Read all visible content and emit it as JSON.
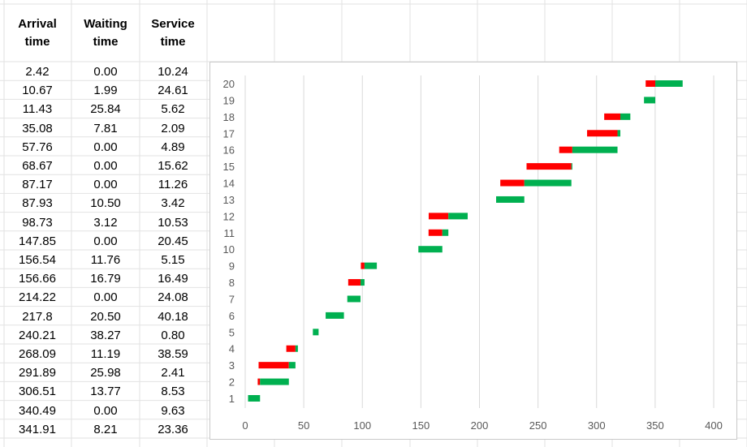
{
  "table": {
    "headers": [
      {
        "line1": "Arrival",
        "line2": "time"
      },
      {
        "line1": "Waiting",
        "line2": "time"
      },
      {
        "line1": "Service",
        "line2": "time"
      }
    ],
    "rows": [
      [
        "2.42",
        "0.00",
        "10.24"
      ],
      [
        "10.67",
        "1.99",
        "24.61"
      ],
      [
        "11.43",
        "25.84",
        "5.62"
      ],
      [
        "35.08",
        "7.81",
        "2.09"
      ],
      [
        "57.76",
        "0.00",
        "4.89"
      ],
      [
        "68.67",
        "0.00",
        "15.62"
      ],
      [
        "87.17",
        "0.00",
        "11.26"
      ],
      [
        "87.93",
        "10.50",
        "3.42"
      ],
      [
        "98.73",
        "3.12",
        "10.53"
      ],
      [
        "147.85",
        "0.00",
        "20.45"
      ],
      [
        "156.54",
        "11.76",
        "5.15"
      ],
      [
        "156.66",
        "16.79",
        "16.49"
      ],
      [
        "214.22",
        "0.00",
        "24.08"
      ],
      [
        "217.8",
        "20.50",
        "40.18"
      ],
      [
        "240.21",
        "38.27",
        "0.80"
      ],
      [
        "268.09",
        "11.19",
        "38.59"
      ],
      [
        "291.89",
        "25.98",
        "2.41"
      ],
      [
        "306.51",
        "13.77",
        "8.53"
      ],
      [
        "340.49",
        "0.00",
        "9.63"
      ],
      [
        "341.91",
        "8.21",
        "23.36"
      ]
    ]
  },
  "chart_data": {
    "type": "bar",
    "orientation": "horizontal",
    "stacked": true,
    "categories": [
      "1",
      "2",
      "3",
      "4",
      "5",
      "6",
      "7",
      "8",
      "9",
      "10",
      "11",
      "12",
      "13",
      "14",
      "15",
      "16",
      "17",
      "18",
      "19",
      "20"
    ],
    "series": [
      {
        "role": "waiting",
        "color": "#ff0000",
        "start": [
          2.42,
          10.67,
          11.43,
          35.08,
          57.76,
          68.67,
          87.17,
          87.93,
          98.73,
          147.85,
          156.54,
          156.66,
          214.22,
          217.8,
          240.21,
          268.09,
          291.89,
          306.51,
          340.49,
          341.91
        ],
        "values": [
          0.0,
          1.99,
          25.84,
          7.81,
          0.0,
          0.0,
          0.0,
          10.5,
          3.12,
          0.0,
          11.76,
          16.79,
          0.0,
          20.5,
          38.27,
          11.19,
          25.98,
          13.77,
          0.0,
          8.21
        ]
      },
      {
        "role": "service",
        "color": "#00b050",
        "values": [
          10.24,
          24.61,
          5.62,
          2.09,
          4.89,
          15.62,
          11.26,
          3.42,
          10.53,
          20.45,
          5.15,
          16.49,
          24.08,
          40.18,
          0.8,
          38.59,
          2.41,
          8.53,
          9.63,
          23.36
        ]
      }
    ],
    "x_ticks": [
      "0",
      "50",
      "100",
      "150",
      "200",
      "250",
      "300",
      "350",
      "400"
    ],
    "xlim": [
      0,
      400
    ],
    "grid": "vertical",
    "legend": "none"
  }
}
